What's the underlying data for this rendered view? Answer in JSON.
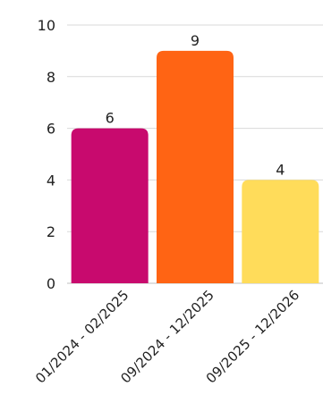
{
  "chart_data": {
    "type": "bar",
    "categories": [
      "01/2024 - 02/2025",
      "09/2024 - 12/2025",
      "09/2025 - 12/2026"
    ],
    "values": [
      6,
      9,
      4
    ],
    "bar_colors": [
      "#C80A6E",
      "#FF6414",
      "#FFDC5A"
    ],
    "ylim": [
      0,
      10
    ],
    "yticks": [
      0,
      2,
      4,
      6,
      8,
      10
    ],
    "title": "",
    "xlabel": "",
    "ylabel": "",
    "grid": true,
    "data_labels": true
  }
}
